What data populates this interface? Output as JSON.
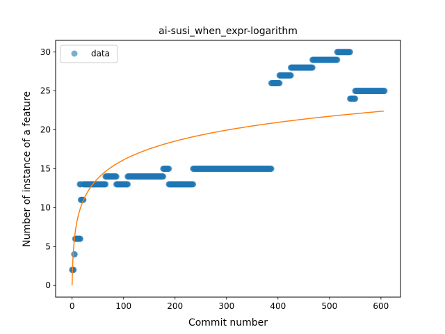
{
  "chart_data": {
    "type": "scatter",
    "title": "ai-susi_when_expr-logarithm",
    "xlabel": "Commit number",
    "ylabel": "Number of instance of a feature",
    "xlim": [
      -32,
      638
    ],
    "ylim": [
      -1.5,
      31.5
    ],
    "xticks": [
      0,
      100,
      200,
      300,
      400,
      500,
      600
    ],
    "yticks": [
      0,
      5,
      10,
      15,
      20,
      25,
      30
    ],
    "grid": false,
    "legend_position": "top-left",
    "colors": {
      "data": "#1f77b4",
      "fit": "#ff7f0e"
    },
    "series": [
      {
        "name": "data",
        "kind": "points",
        "segments": [
          {
            "x_start": 0,
            "x_end": 3,
            "y": 2
          },
          {
            "x_start": 4,
            "x_end": 5,
            "y": 4
          },
          {
            "x_start": 6,
            "x_end": 16,
            "y": 6
          },
          {
            "x_start": 15,
            "x_end": 17,
            "y": 13
          },
          {
            "x_start": 17,
            "x_end": 22,
            "y": 11
          },
          {
            "x_start": 22,
            "x_end": 65,
            "y": 13
          },
          {
            "x_start": 65,
            "x_end": 86,
            "y": 14
          },
          {
            "x_start": 86,
            "x_end": 108,
            "y": 13
          },
          {
            "x_start": 108,
            "x_end": 177,
            "y": 14
          },
          {
            "x_start": 177,
            "x_end": 188,
            "y": 15
          },
          {
            "x_start": 188,
            "x_end": 235,
            "y": 13
          },
          {
            "x_start": 235,
            "x_end": 387,
            "y": 15
          },
          {
            "x_start": 387,
            "x_end": 403,
            "y": 26
          },
          {
            "x_start": 403,
            "x_end": 425,
            "y": 27
          },
          {
            "x_start": 425,
            "x_end": 467,
            "y": 28
          },
          {
            "x_start": 467,
            "x_end": 515,
            "y": 29
          },
          {
            "x_start": 515,
            "x_end": 540,
            "y": 30
          },
          {
            "x_start": 540,
            "x_end": 550,
            "y": 24
          },
          {
            "x_start": 550,
            "x_end": 607,
            "y": 25
          }
        ]
      },
      {
        "name": "",
        "kind": "line",
        "model": "logarithm",
        "coefficients": {
          "a": 3.497,
          "b": 0.0
        },
        "x_range": [
          0,
          607
        ]
      }
    ]
  }
}
